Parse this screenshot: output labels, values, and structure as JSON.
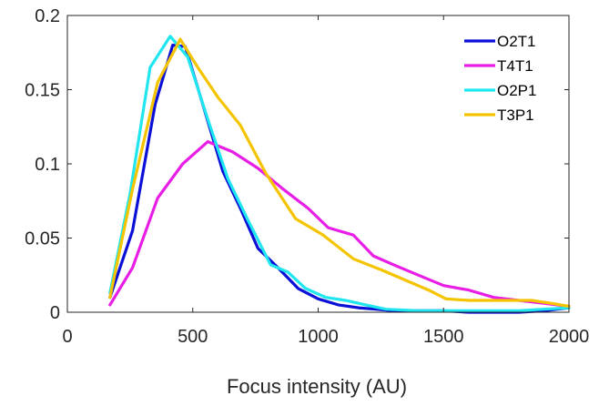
{
  "chart_data": {
    "type": "line",
    "title": "",
    "xlabel": "Focus intensity (AU)",
    "ylabel": "",
    "xlim": [
      0,
      2000
    ],
    "ylim": [
      0,
      0.2
    ],
    "xticks": [
      0,
      500,
      1000,
      1500,
      2000
    ],
    "xtick_labels": [
      "0",
      "500",
      "1000",
      "1500",
      "2000"
    ],
    "yticks": [
      0,
      0.05,
      0.1,
      0.15,
      0.2
    ],
    "ytick_labels": [
      "0",
      "0.05",
      "0.1",
      "0.15",
      "0.2"
    ],
    "grid": false,
    "legend_position": "top-right",
    "series": [
      {
        "name": "O2T1",
        "color": "#0a10d6",
        "x": [
          170,
          260,
          350,
          420,
          470,
          540,
          620,
          690,
          760,
          840,
          920,
          1000,
          1080,
          1160,
          1230,
          1300,
          1400,
          1500,
          1600,
          1700,
          1800,
          1900,
          2000
        ],
        "y": [
          0.01,
          0.055,
          0.14,
          0.18,
          0.179,
          0.14,
          0.095,
          0.07,
          0.043,
          0.03,
          0.016,
          0.009,
          0.005,
          0.003,
          0.002,
          0.001,
          0.001,
          0.001,
          0.0,
          0.0,
          0.0,
          0.001,
          0.003
        ]
      },
      {
        "name": "T4T1",
        "color": "#e81ee6",
        "x": [
          170,
          260,
          360,
          460,
          560,
          660,
          760,
          860,
          960,
          1040,
          1140,
          1220,
          1300,
          1400,
          1500,
          1600,
          1700,
          1800,
          1900,
          2000
        ],
        "y": [
          0.005,
          0.03,
          0.077,
          0.1,
          0.115,
          0.108,
          0.097,
          0.083,
          0.07,
          0.057,
          0.052,
          0.038,
          0.032,
          0.025,
          0.018,
          0.015,
          0.01,
          0.008,
          0.006,
          0.004
        ]
      },
      {
        "name": "O2P1",
        "color": "#1fe6ef",
        "x": [
          170,
          250,
          330,
          410,
          480,
          560,
          640,
          720,
          810,
          880,
          950,
          1030,
          1110,
          1190,
          1270,
          1400,
          1500,
          1600,
          1700,
          1800,
          1900,
          2000
        ],
        "y": [
          0.013,
          0.08,
          0.165,
          0.186,
          0.172,
          0.13,
          0.09,
          0.062,
          0.032,
          0.027,
          0.016,
          0.01,
          0.008,
          0.005,
          0.002,
          0.001,
          0.001,
          0.001,
          0.001,
          0.001,
          0.002,
          0.003
        ]
      },
      {
        "name": "T3P1",
        "color": "#f5c400",
        "x": [
          170,
          260,
          360,
          450,
          520,
          600,
          690,
          790,
          910,
          1020,
          1140,
          1260,
          1370,
          1440,
          1510,
          1600,
          1720,
          1850,
          1930,
          2000
        ],
        "y": [
          0.01,
          0.083,
          0.155,
          0.184,
          0.165,
          0.145,
          0.126,
          0.094,
          0.063,
          0.052,
          0.036,
          0.028,
          0.02,
          0.015,
          0.009,
          0.008,
          0.008,
          0.008,
          0.006,
          0.004
        ]
      }
    ]
  }
}
